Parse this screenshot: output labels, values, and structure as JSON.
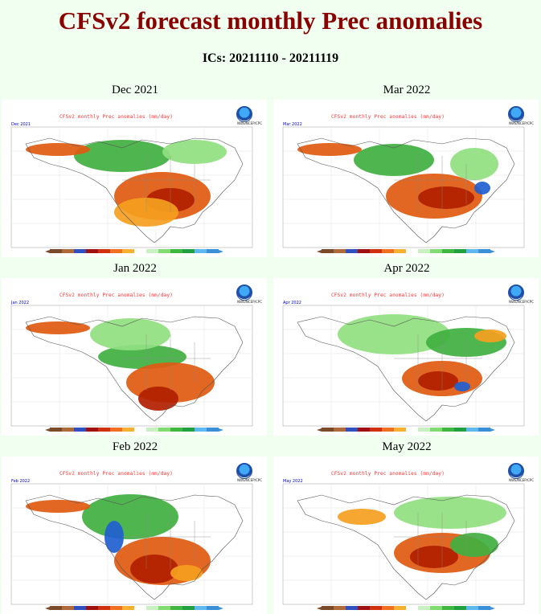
{
  "page": {
    "title": "CFSv2 forecast monthly Prec anomalies",
    "subtitle": "ICs: 20211110 - 20211119"
  },
  "panels": [
    {
      "label": "Dec 2021",
      "map_title": "CFSv2 monthly Prec anomalies (mm/day)",
      "corner": "Dec 2021",
      "agency": "NWS/NCEP/CPC"
    },
    {
      "label": "Mar 2022",
      "map_title": "CFSv2 monthly Prec anomalies (mm/day)",
      "corner": "Mar 2022",
      "agency": "NWS/NCEP/CPC"
    },
    {
      "label": "Jan 2022",
      "map_title": "CFSv2 monthly Prec anomalies (mm/day)",
      "corner": "Jan 2022",
      "agency": "NWS/NCEP/CPC"
    },
    {
      "label": "Apr 2022",
      "map_title": "CFSv2 monthly Prec anomalies (mm/day)",
      "corner": "Apr 2022",
      "agency": "NWS/NCEP/CPC"
    },
    {
      "label": "Feb 2022",
      "map_title": "CFSv2 monthly Prec anomalies (mm/day)",
      "corner": "Feb 2022",
      "agency": "NWS/NCEP/CPC"
    },
    {
      "label": "May 2022",
      "map_title": "CFSv2 monthly Prec anomalies (mm/day)",
      "corner": "May 2022",
      "agency": "NWS/NCEP/CPC"
    }
  ],
  "colors": {
    "title": "#8b0000",
    "background": "#f0fff0",
    "dry_strong": "#b22000",
    "dry": "#e05a10",
    "dry_light": "#f5a020",
    "wet_light": "#90e080",
    "wet": "#40b040",
    "wet_strong": "#2060d0",
    "colorbar": [
      "#7a4a2a",
      "#b06a3a",
      "#3050c0",
      "#a01010",
      "#d03010",
      "#f07020",
      "#f8b030",
      "#ffffff",
      "#c8f0c0",
      "#80dc70",
      "#40b840",
      "#20a040",
      "#60b8f0",
      "#3a8fd8"
    ]
  }
}
